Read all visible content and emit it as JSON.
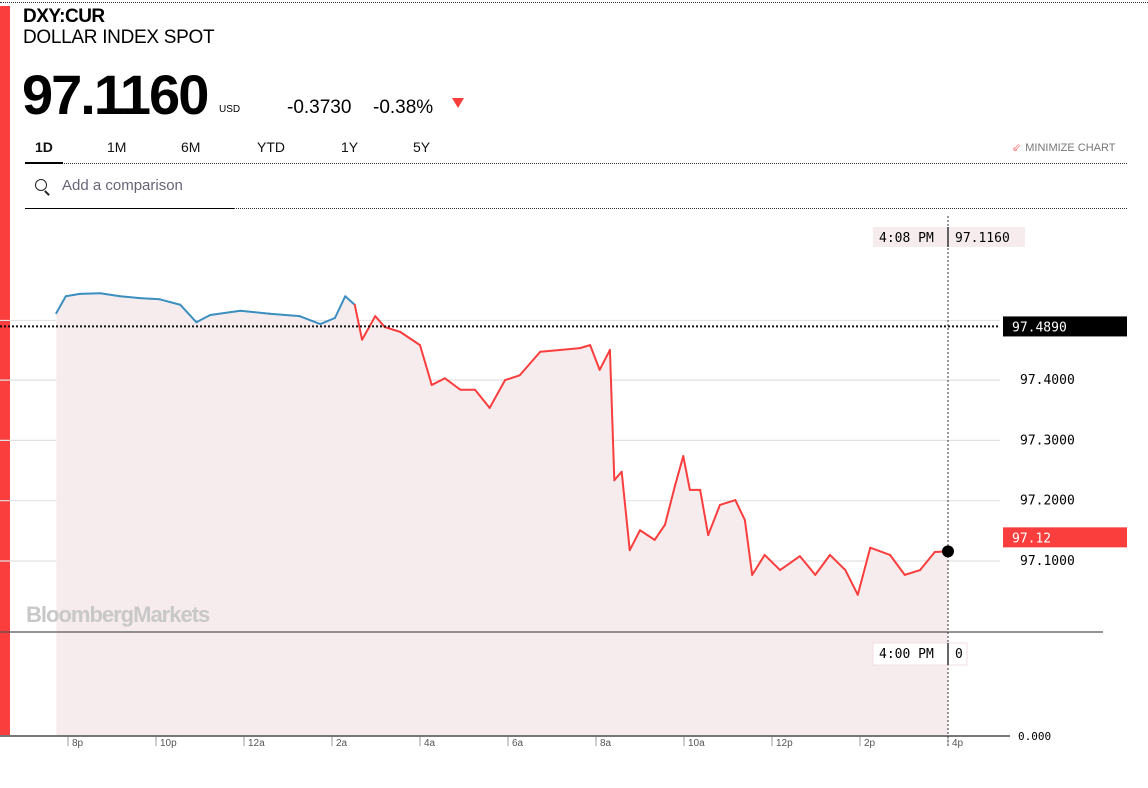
{
  "header": {
    "ticker": "DXY:CUR",
    "name": "DOLLAR INDEX SPOT",
    "price": "97.1160",
    "currency": "USD",
    "change": "-0.3730",
    "change_pct": "-0.38%",
    "direction": "down"
  },
  "tabs": [
    {
      "label": "1D",
      "active": true
    },
    {
      "label": "1M",
      "active": false
    },
    {
      "label": "6M",
      "active": false
    },
    {
      "label": "YTD",
      "active": false
    },
    {
      "label": "1Y",
      "active": false
    },
    {
      "label": "5Y",
      "active": false
    }
  ],
  "minimize_label": "MINIMIZE CHART",
  "search": {
    "placeholder": "Add a comparison"
  },
  "colors": {
    "accent": "#fa3d3d",
    "up_line": "#3a8fc0",
    "down_line": "#fa3d3d",
    "fill": "#f7eced"
  },
  "chart_data": {
    "type": "line",
    "title": "",
    "watermark": "BloombergMarkets",
    "previous_close": 97.489,
    "previous_close_label": "97.4890",
    "last_value_label": "97.12",
    "crosshair": {
      "time_label": "4:08 PM",
      "value_label": "97.1160"
    },
    "volume_crosshair": {
      "time_label": "4:00 PM",
      "value_label": "0"
    },
    "volume_axis_label": "0.000",
    "y_ticks": [
      "97.4000",
      "97.3000",
      "97.2000",
      "97.1000"
    ],
    "x_ticks": [
      "8p",
      "10p",
      "12a",
      "2a",
      "4a",
      "6a",
      "8a",
      "10a",
      "12p",
      "2p",
      "4p"
    ],
    "grid": true,
    "x": [
      "19:44",
      "19:57",
      "20:16",
      "20:44",
      "21:11",
      "21:38",
      "22:05",
      "22:33",
      "22:55",
      "23:14",
      "23:55",
      "00:35",
      "01:16",
      "01:44",
      "02:04",
      "02:18",
      "02:31",
      "02:41",
      "02:59",
      "03:12",
      "03:33",
      "04:00",
      "04:16",
      "04:34",
      "04:55",
      "05:15",
      "05:35",
      "05:56",
      "06:16",
      "06:44",
      "07:11",
      "07:38",
      "07:52",
      "08:05",
      "08:19",
      "08:25",
      "08:35",
      "08:46",
      "09:00",
      "09:20",
      "09:34",
      "09:48",
      "09:59",
      "10:08",
      "10:22",
      "10:33",
      "10:49",
      "11:10",
      "11:23",
      "11:33",
      "11:50",
      "12:11",
      "12:38",
      "12:59",
      "13:19",
      "13:40",
      "13:57",
      "14:14",
      "14:41",
      "15:01",
      "15:22",
      "15:42",
      "16:00"
    ],
    "values": [
      97.511,
      97.539,
      97.543,
      97.544,
      97.539,
      97.536,
      97.534,
      97.525,
      97.496,
      97.508,
      97.515,
      97.51,
      97.506,
      97.493,
      97.503,
      97.539,
      97.525,
      97.467,
      97.506,
      97.488,
      97.48,
      97.458,
      97.392,
      97.403,
      97.384,
      97.384,
      97.354,
      97.4,
      97.408,
      97.447,
      97.45,
      97.453,
      97.458,
      97.417,
      97.45,
      97.234,
      97.248,
      97.118,
      97.151,
      97.135,
      97.16,
      97.226,
      97.274,
      97.218,
      97.218,
      97.143,
      97.193,
      97.201,
      97.168,
      97.077,
      97.11,
      97.085,
      97.108,
      97.077,
      97.11,
      97.085,
      97.044,
      97.122,
      97.11,
      97.077,
      97.085,
      97.115,
      97.116
    ]
  }
}
